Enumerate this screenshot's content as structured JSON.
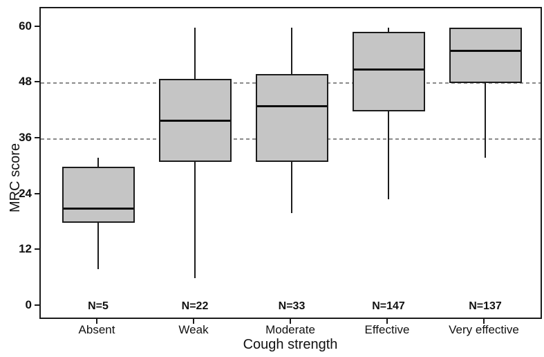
{
  "figure": {
    "y_axis_title": "MRC score",
    "x_axis_title": "Cough strength",
    "colors": {
      "background": "#ffffff",
      "box_fill": "#c5c5c5",
      "box_border": "#1b1b1b",
      "median": "#0d0d0d",
      "gridline": "#8a8a8a",
      "axis": "#1a1a1a",
      "text": "#111111"
    }
  },
  "chart_data": {
    "type": "boxplot",
    "title": "",
    "xlabel": "Cough strength",
    "ylabel": "MRC score",
    "ylim": [
      0,
      60
    ],
    "yticks": [
      0,
      12,
      24,
      36,
      48,
      60
    ],
    "gridlines_at": [
      36,
      48
    ],
    "grid_style": "dashed",
    "legend_position": "none",
    "categories": [
      "Absent",
      "Weak",
      "Moderate",
      "Effective",
      "Very effective"
    ],
    "n_labels": [
      "N=5",
      "N=22",
      "N=33",
      "N=147",
      "N=137"
    ],
    "series": [
      {
        "category": "Absent",
        "n": 5,
        "whisker_low": 8,
        "q1": 18,
        "median": 21,
        "q3": 30,
        "whisker_high": 32
      },
      {
        "category": "Weak",
        "n": 22,
        "whisker_low": 6,
        "q1": 31,
        "median": 40,
        "q3": 49,
        "whisker_high": 60
      },
      {
        "category": "Moderate",
        "n": 33,
        "whisker_low": 20,
        "q1": 31,
        "median": 43,
        "q3": 50,
        "whisker_high": 60
      },
      {
        "category": "Effective",
        "n": 147,
        "whisker_low": 23,
        "q1": 42,
        "median": 51,
        "q3": 59,
        "whisker_high": 60
      },
      {
        "category": "Very effective",
        "n": 137,
        "whisker_low": 32,
        "q1": 48,
        "median": 55,
        "q3": 60,
        "whisker_high": 60
      }
    ]
  }
}
